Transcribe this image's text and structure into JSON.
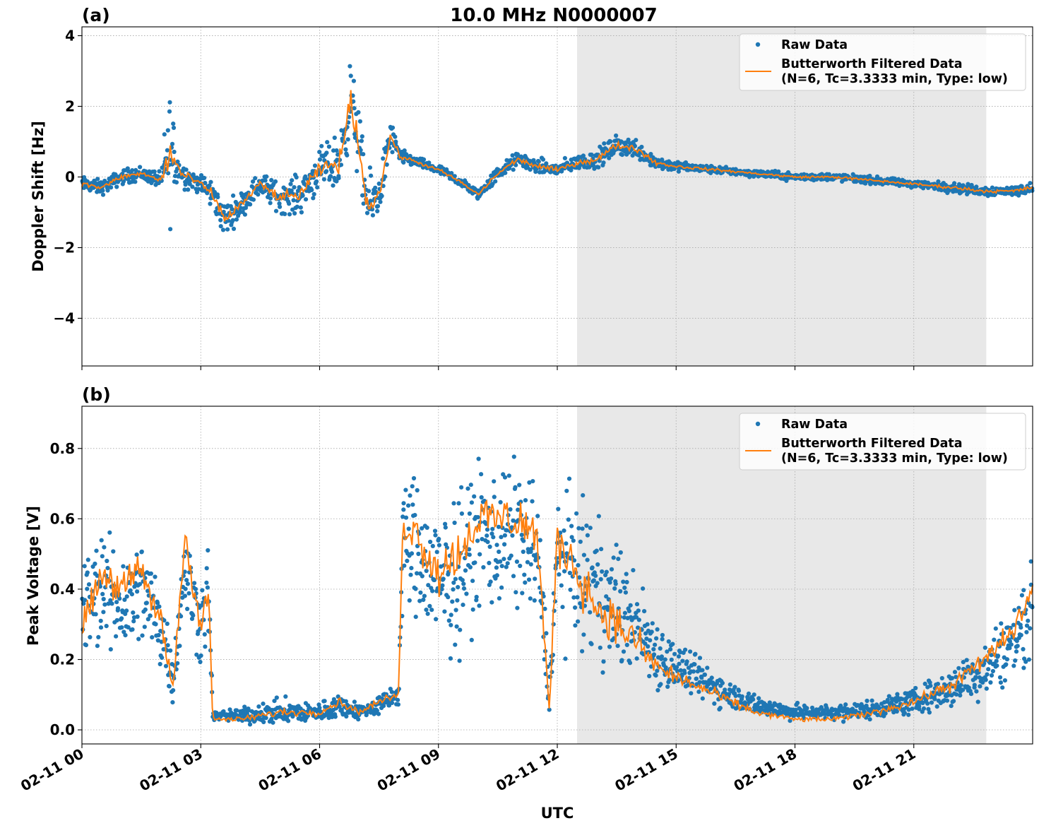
{
  "figure": {
    "title": "10.0 MHz N0000007",
    "xlabel": "UTC"
  },
  "colors": {
    "raw": "#1f77b4",
    "filtered": "#ff7f0e",
    "night_shade": "#e8e8e8",
    "grid": "#b0b0b0"
  },
  "chart_data": [
    {
      "type": "scatter",
      "panel_label": "(a)",
      "title": "10.0 MHz N0000007",
      "xlabel": "",
      "ylabel": "Doppler Shift [Hz]",
      "x_unit": "hours UTC since 02-11 00:00",
      "xlim": [
        0,
        24
      ],
      "ylim": [
        -5.35,
        4.25
      ],
      "yticks": [
        4,
        2,
        0,
        -2,
        -4
      ],
      "ytick_labels": [
        "4",
        "2",
        "0",
        "−2",
        "−4"
      ],
      "shaded_interval": [
        12.5,
        22.83
      ],
      "grid": true,
      "legend": "top-right",
      "legend_entries": [
        "Raw Data",
        "Butterworth Filtered Data",
        "(N=6, Tc=3.3333 min, Type: low)"
      ],
      "series": [
        {
          "name": "Raw Data",
          "style": "points",
          "x": [
            0,
            0.5,
            1,
            1.5,
            2,
            2.2,
            2.5,
            3,
            3.3,
            3.6,
            4,
            4.5,
            5,
            5.5,
            6,
            6.5,
            6.8,
            7,
            7.2,
            7.5,
            7.8,
            8,
            8.5,
            9,
            9.5,
            10,
            10.5,
            11,
            11.5,
            12,
            12.5,
            13,
            13.5,
            14,
            14.5,
            15,
            16,
            17,
            18,
            19,
            20,
            21,
            22,
            22.8,
            23.5,
            24
          ],
          "y": [
            -0.2,
            -0.3,
            0,
            0.1,
            -0.1,
            0.8,
            0.1,
            -0.2,
            -0.5,
            -1.2,
            -0.8,
            -0.2,
            -0.6,
            -0.5,
            0.2,
            0.4,
            2.3,
            0.8,
            -0.8,
            -0.5,
            1.2,
            0.6,
            0.4,
            0.2,
            -0.1,
            -0.5,
            0.1,
            0.5,
            0.3,
            0.2,
            0.4,
            0.5,
            0.9,
            0.8,
            0.4,
            0.3,
            0.2,
            0.1,
            0,
            0,
            -0.1,
            -0.2,
            -0.3,
            -0.4,
            -0.4,
            -0.3
          ],
          "spread": [
            0.3,
            0.3,
            0.3,
            0.3,
            0.3,
            3,
            0.5,
            0.4,
            0.6,
            0.7,
            0.5,
            0.5,
            0.6,
            0.8,
            0.8,
            1.2,
            1.5,
            1.5,
            1.2,
            1,
            0.7,
            0.3,
            0.2,
            0.2,
            0.2,
            0.2,
            0.3,
            0.3,
            0.3,
            0.3,
            0.3,
            0.4,
            0.4,
            0.4,
            0.3,
            0.2,
            0.15,
            0.15,
            0.15,
            0.15,
            0.15,
            0.15,
            0.2,
            0.2,
            0.2,
            0.2
          ]
        },
        {
          "name": "Butterworth Filtered Data",
          "style": "line",
          "x": [
            0,
            0.5,
            1,
            1.5,
            2,
            2.2,
            2.5,
            3,
            3.3,
            3.6,
            4,
            4.5,
            5,
            5.5,
            6,
            6.5,
            6.8,
            7,
            7.2,
            7.5,
            7.8,
            8,
            8.5,
            9,
            9.5,
            10,
            10.5,
            11,
            11.5,
            12,
            12.5,
            13,
            13.5,
            14,
            14.5,
            15,
            16,
            17,
            18,
            19,
            20,
            21,
            22,
            22.8,
            23.5,
            24
          ],
          "y": [
            -0.2,
            -0.3,
            0,
            0.1,
            -0.1,
            0.7,
            0.1,
            -0.2,
            -0.5,
            -1.2,
            -0.8,
            -0.2,
            -0.6,
            -0.5,
            0.2,
            0.4,
            2.2,
            0.8,
            -0.8,
            -0.5,
            1.2,
            0.6,
            0.4,
            0.2,
            -0.1,
            -0.5,
            0.1,
            0.5,
            0.3,
            0.2,
            0.4,
            0.5,
            0.9,
            0.8,
            0.4,
            0.3,
            0.2,
            0.1,
            0,
            0,
            -0.1,
            -0.2,
            -0.3,
            -0.4,
            -0.4,
            -0.3
          ]
        }
      ]
    },
    {
      "type": "scatter",
      "panel_label": "(b)",
      "title": "",
      "xlabel": "UTC",
      "ylabel": "Peak Voltage [V]",
      "x_unit": "hours UTC since 02-11 00:00",
      "xlim": [
        0,
        24
      ],
      "ylim": [
        -0.04,
        0.92
      ],
      "yticks": [
        0.0,
        0.2,
        0.4,
        0.6,
        0.8
      ],
      "ytick_labels": [
        "0.0",
        "0.2",
        "0.4",
        "0.6",
        "0.8"
      ],
      "xticks": [
        0,
        3,
        6,
        9,
        12,
        15,
        18,
        21
      ],
      "xtick_labels": [
        "02-11 00",
        "02-11 03",
        "02-11 06",
        "02-11 09",
        "02-11 12",
        "02-11 15",
        "02-11 18",
        "02-11 21"
      ],
      "shaded_interval": [
        12.5,
        22.83
      ],
      "grid": true,
      "legend": "top-right",
      "legend_entries": [
        "Raw Data",
        "Butterworth Filtered Data",
        "(N=6, Tc=3.3333 min, Type: low)"
      ],
      "series": [
        {
          "name": "Raw Data",
          "style": "points",
          "x": [
            0,
            0.5,
            1,
            1.5,
            2,
            2.3,
            2.6,
            3,
            3.2,
            3.3,
            4,
            5,
            6,
            6.5,
            7,
            7.5,
            8,
            8.1,
            8.5,
            9,
            9.5,
            10,
            10.5,
            11,
            11.5,
            11.8,
            12,
            12.5,
            13,
            13.5,
            14,
            14.5,
            15,
            16,
            17,
            18,
            19,
            20,
            21,
            22,
            22.8,
            23.5,
            24
          ],
          "y": [
            0.35,
            0.4,
            0.35,
            0.4,
            0.3,
            0.15,
            0.45,
            0.3,
            0.4,
            0.04,
            0.04,
            0.05,
            0.05,
            0.07,
            0.05,
            0.07,
            0.1,
            0.55,
            0.5,
            0.4,
            0.45,
            0.55,
            0.55,
            0.55,
            0.5,
            0.1,
            0.5,
            0.45,
            0.4,
            0.35,
            0.3,
            0.22,
            0.18,
            0.12,
            0.07,
            0.05,
            0.05,
            0.06,
            0.08,
            0.12,
            0.18,
            0.25,
            0.35
          ],
          "spread": [
            0.22,
            0.22,
            0.22,
            0.22,
            0.2,
            0.1,
            0.2,
            0.18,
            0.2,
            0.02,
            0.03,
            0.05,
            0.04,
            0.05,
            0.03,
            0.04,
            0.05,
            0.25,
            0.3,
            0.3,
            0.3,
            0.3,
            0.3,
            0.3,
            0.3,
            0.06,
            0.3,
            0.28,
            0.28,
            0.25,
            0.2,
            0.15,
            0.1,
            0.07,
            0.04,
            0.03,
            0.03,
            0.04,
            0.05,
            0.08,
            0.12,
            0.15,
            0.18
          ]
        },
        {
          "name": "Butterworth Filtered Data",
          "style": "line",
          "x": [
            0,
            0.5,
            1,
            1.5,
            2,
            2.3,
            2.6,
            3,
            3.2,
            3.3,
            4,
            5,
            6,
            6.5,
            7,
            7.5,
            8,
            8.1,
            8.5,
            9,
            9.5,
            10,
            10.5,
            11,
            11.5,
            11.8,
            12,
            12.5,
            13,
            13.5,
            14,
            14.5,
            15,
            16,
            17,
            18,
            19,
            20,
            21,
            22,
            22.8,
            23.5,
            24
          ],
          "y": [
            0.3,
            0.45,
            0.4,
            0.45,
            0.3,
            0.12,
            0.55,
            0.3,
            0.4,
            0.03,
            0.03,
            0.05,
            0.05,
            0.08,
            0.05,
            0.08,
            0.1,
            0.6,
            0.55,
            0.45,
            0.5,
            0.6,
            0.6,
            0.6,
            0.55,
            0.05,
            0.55,
            0.45,
            0.35,
            0.3,
            0.25,
            0.18,
            0.15,
            0.1,
            0.05,
            0.03,
            0.03,
            0.05,
            0.08,
            0.13,
            0.2,
            0.28,
            0.4
          ]
        }
      ]
    }
  ]
}
